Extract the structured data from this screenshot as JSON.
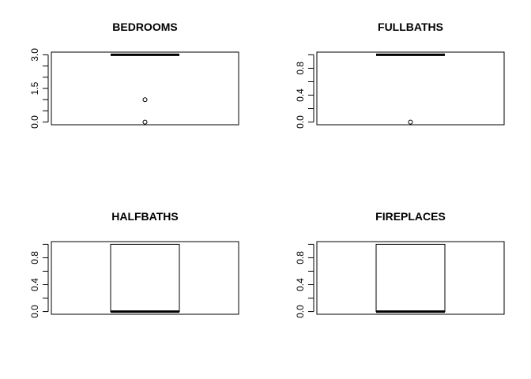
{
  "chart_data": [
    {
      "type": "boxplot",
      "title": "BEDROOMS",
      "ylim": [
        0,
        3
      ],
      "yticks": [
        0,
        0.5,
        1,
        1.5,
        2,
        2.5,
        3
      ],
      "ytick_labels": [
        "0.0",
        "",
        "",
        "1.5",
        "",
        "",
        "3.0"
      ],
      "box": {
        "min": 3,
        "q1": 3,
        "median": 3,
        "q3": 3,
        "max": 3
      },
      "outliers": [
        1,
        0
      ]
    },
    {
      "type": "boxplot",
      "title": "FULLBATHS",
      "ylim": [
        0,
        1
      ],
      "yticks": [
        0,
        0.2,
        0.4,
        0.6,
        0.8,
        1.0
      ],
      "ytick_labels": [
        "0.0",
        "",
        "0.4",
        "",
        "0.8",
        ""
      ],
      "box": {
        "min": 1,
        "q1": 1,
        "median": 1,
        "q3": 1,
        "max": 1
      },
      "outliers": [
        0
      ]
    },
    {
      "type": "boxplot",
      "title": "HALFBATHS",
      "ylim": [
        0,
        1
      ],
      "yticks": [
        0,
        0.2,
        0.4,
        0.6,
        0.8,
        1.0
      ],
      "ytick_labels": [
        "0.0",
        "",
        "0.4",
        "",
        "0.8",
        ""
      ],
      "box": {
        "min": 0,
        "q1": 0,
        "median": 0,
        "q3": 1,
        "max": 1
      },
      "outliers": []
    },
    {
      "type": "boxplot",
      "title": "FIREPLACES",
      "ylim": [
        0,
        1
      ],
      "yticks": [
        0,
        0.2,
        0.4,
        0.6,
        0.8,
        1.0
      ],
      "ytick_labels": [
        "0.0",
        "",
        "0.4",
        "",
        "0.8",
        ""
      ],
      "box": {
        "min": 0,
        "q1": 0,
        "median": 0,
        "q3": 1,
        "max": 1
      },
      "outliers": []
    }
  ]
}
